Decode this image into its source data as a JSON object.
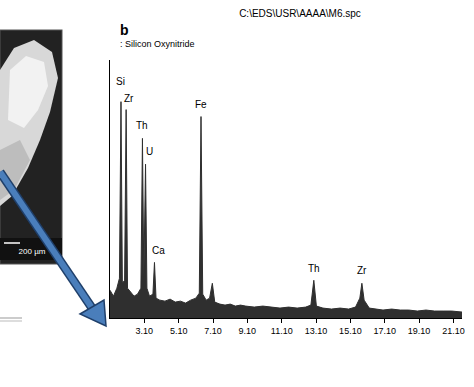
{
  "panel_label": "b",
  "micrograph": {
    "scale_bar": "200 µm"
  },
  "chart_data": {
    "type": "area",
    "title": "C:\\EDS\\USR\\AAAA\\M6.spc",
    "subtitle": ": Silicon Oxynitride",
    "x": [
      1.1,
      1.3,
      1.5,
      1.65,
      1.74,
      1.82,
      1.95,
      2.04,
      2.12,
      2.3,
      2.5,
      2.7,
      2.9,
      2.99,
      3.07,
      3.17,
      3.25,
      3.4,
      3.6,
      3.69,
      3.78,
      4.0,
      4.3,
      4.6,
      4.9,
      5.2,
      5.5,
      5.8,
      6.1,
      6.3,
      6.4,
      6.5,
      6.7,
      6.9,
      7.06,
      7.2,
      7.5,
      7.8,
      8.1,
      8.4,
      8.7,
      9.0,
      9.5,
      10.0,
      10.5,
      11.0,
      11.5,
      12.0,
      12.5,
      12.8,
      12.97,
      13.12,
      13.5,
      14.0,
      14.5,
      15.0,
      15.4,
      15.65,
      15.77,
      15.9,
      16.2,
      16.6,
      17.0,
      17.5,
      18.0,
      18.5,
      19.0,
      19.5,
      20.0,
      20.5,
      21.0,
      21.6
    ],
    "values": [
      28,
      22,
      30,
      40,
      218,
      35,
      38,
      210,
      30,
      26,
      22,
      24,
      30,
      181,
      40,
      155,
      30,
      22,
      24,
      56,
      20,
      18,
      17,
      19,
      16,
      17,
      15,
      18,
      20,
      25,
      203,
      24,
      18,
      20,
      35,
      16,
      14,
      13,
      14,
      12,
      13,
      12,
      11,
      12,
      11,
      10,
      11,
      10,
      11,
      13,
      38,
      12,
      10,
      9,
      10,
      9,
      11,
      20,
      35,
      18,
      10,
      9,
      8,
      9,
      8,
      8,
      7,
      8,
      7,
      7,
      7,
      6
    ],
    "color": "#2f2f2f",
    "xlim": [
      1.1,
      21.6
    ],
    "xticks": [
      {
        "value": 3.1,
        "label": "3.10"
      },
      {
        "value": 5.1,
        "label": "5.10"
      },
      {
        "value": 7.1,
        "label": "7.10"
      },
      {
        "value": 9.1,
        "label": "9.10"
      },
      {
        "value": 11.1,
        "label": "11.10"
      },
      {
        "value": 13.1,
        "label": "13.10"
      },
      {
        "value": 15.1,
        "label": "15.10"
      },
      {
        "value": 17.1,
        "label": "17.10"
      },
      {
        "value": 19.1,
        "label": "19.10"
      },
      {
        "value": 21.1,
        "label": "21.10"
      }
    ],
    "ylim": [
      0,
      260
    ],
    "tick_labels": "x",
    "grid": false,
    "annotations": [
      {
        "text": "Si",
        "x": 1.74,
        "y": 231
      },
      {
        "text": "Zr",
        "x": 2.2,
        "y": 214
      },
      {
        "text": "Th",
        "x": 2.99,
        "y": 186
      },
      {
        "text": "U",
        "x": 3.4,
        "y": 160
      },
      {
        "text": "Ca",
        "x": 3.9,
        "y": 60
      },
      {
        "text": "Fe",
        "x": 6.4,
        "y": 208
      },
      {
        "text": "Th",
        "x": 12.97,
        "y": 42
      },
      {
        "text": "Zr",
        "x": 15.77,
        "y": 40
      }
    ]
  }
}
